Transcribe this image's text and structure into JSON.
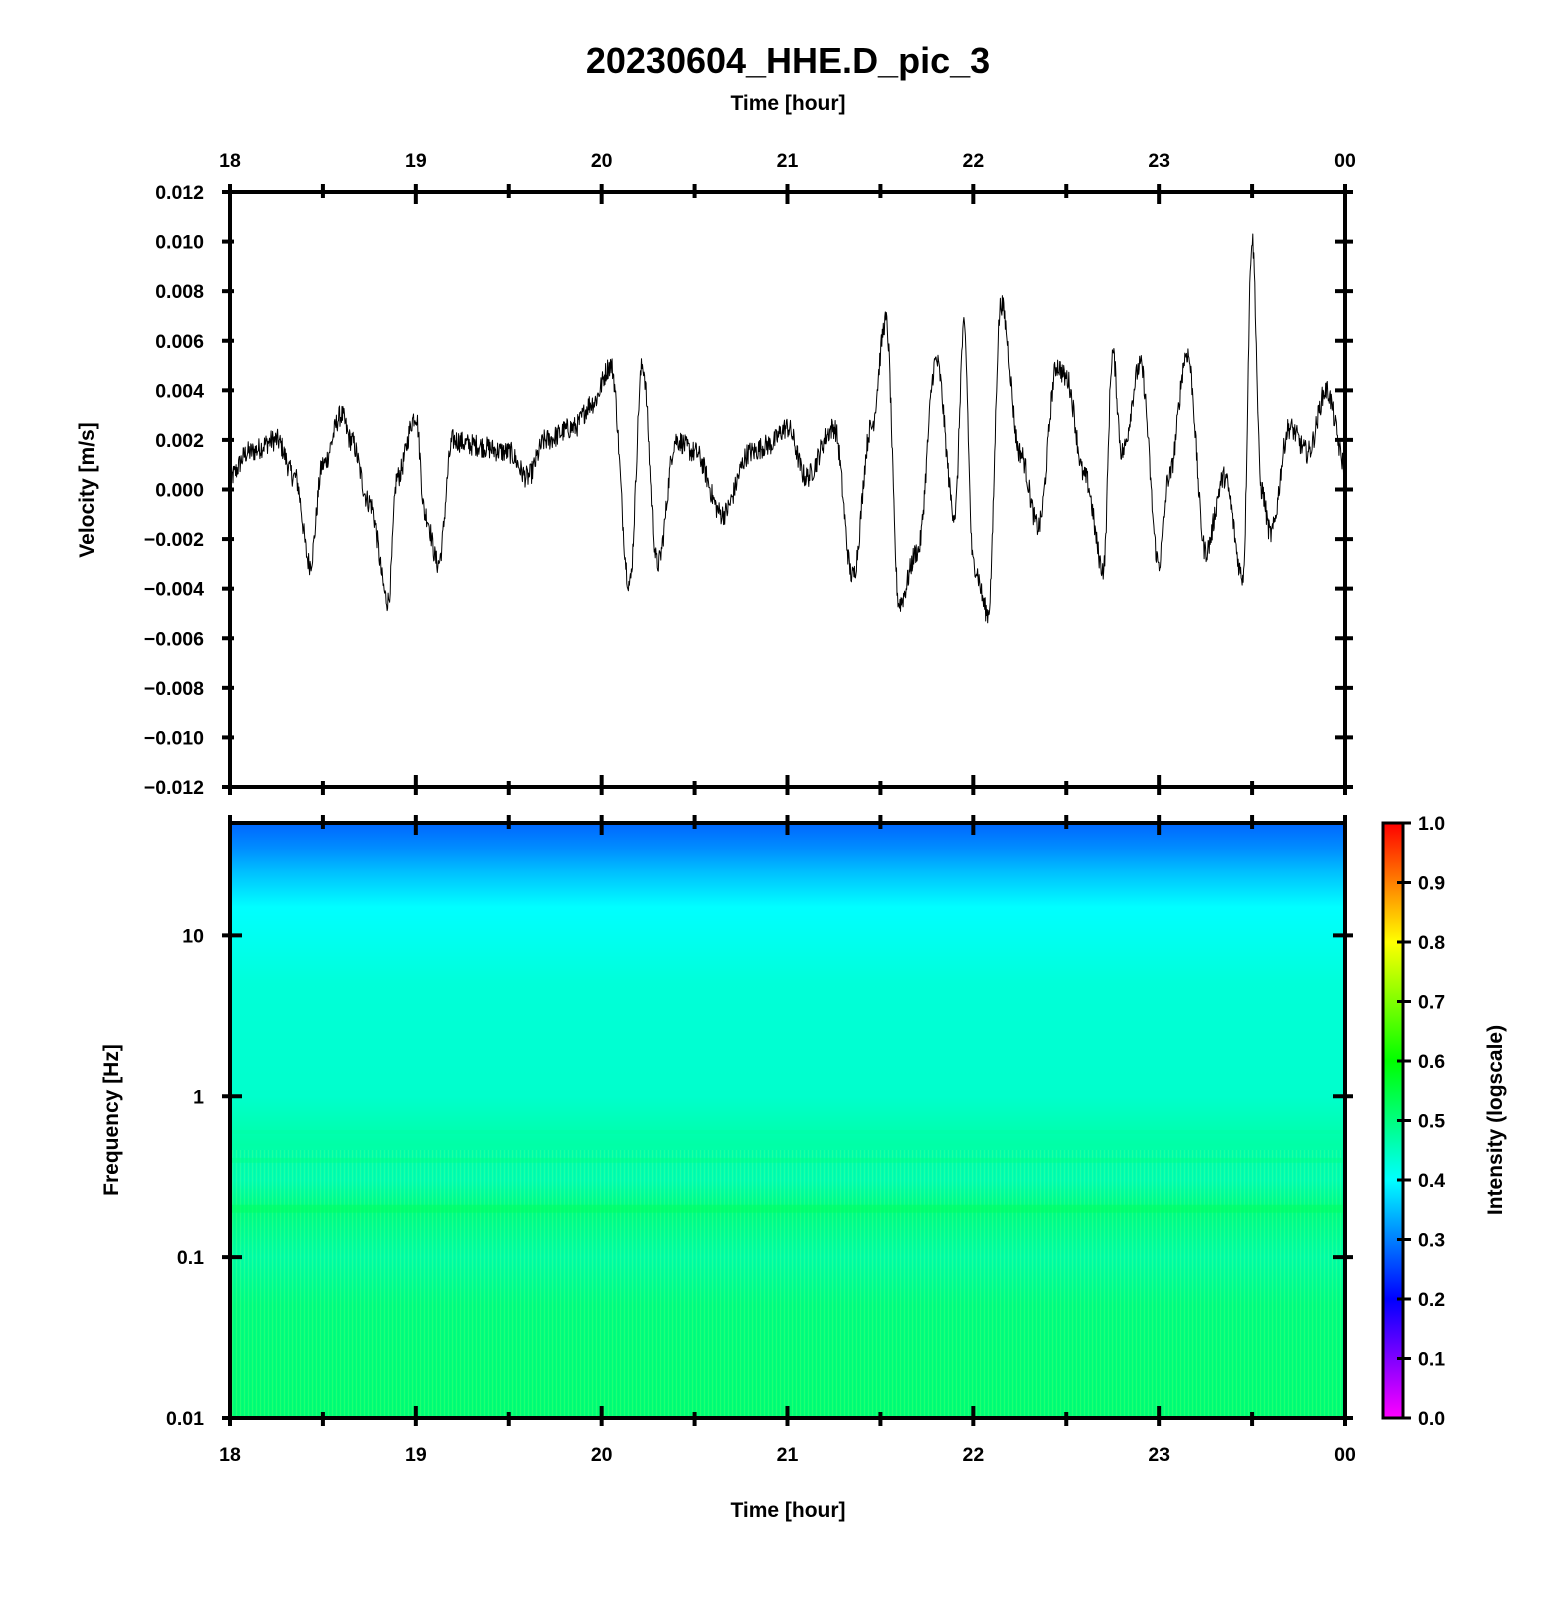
{
  "chart_data": [
    {
      "type": "line",
      "title": "20230604_HHE.D_pic_3",
      "xlabel": "Time [hour]",
      "ylabel": "Velocity [m/s]",
      "xlim": [
        18,
        24
      ],
      "ylim": [
        -0.012,
        0.012
      ],
      "x_ticks": [
        "18",
        "19",
        "20",
        "21",
        "22",
        "23",
        "00"
      ],
      "y_ticks": [
        "0.012",
        "0.010",
        "0.008",
        "0.006",
        "0.004",
        "0.002",
        "0.000",
        "−0.002",
        "−0.004",
        "−0.006",
        "−0.008",
        "−0.010",
        "−0.012"
      ],
      "grid": false,
      "line_color": "#000000",
      "series": [
        {
          "x": [
            18.0,
            18.1,
            18.25,
            18.35,
            18.43,
            18.5,
            18.6,
            18.65,
            18.75,
            18.85,
            18.9,
            19.0,
            19.05,
            19.12,
            19.2,
            19.3,
            19.5,
            19.6,
            19.7,
            19.85,
            19.95,
            20.05,
            20.15,
            20.22,
            20.3,
            20.4,
            20.5,
            20.65,
            20.8,
            20.9,
            21.0,
            21.1,
            21.25,
            21.35,
            21.45,
            21.53,
            21.6,
            21.7,
            21.8,
            21.9,
            21.95,
            22.0,
            22.08,
            22.15,
            22.25,
            22.35,
            22.45,
            22.5,
            22.6,
            22.7,
            22.75,
            22.8,
            22.9,
            23.0,
            23.05,
            23.15,
            23.25,
            23.35,
            23.45,
            23.5,
            23.55,
            23.6,
            23.7,
            23.8,
            23.9,
            24.0
          ],
          "values": [
            0.0005,
            0.0015,
            0.002,
            0.0005,
            -0.003,
            0.001,
            0.003,
            0.002,
            -0.0005,
            -0.0045,
            0.0005,
            0.003,
            -0.001,
            -0.003,
            0.002,
            0.0018,
            0.0015,
            0.0005,
            0.002,
            0.0025,
            0.0035,
            0.005,
            -0.0038,
            0.005,
            -0.003,
            0.002,
            0.0015,
            -0.001,
            0.0015,
            0.0018,
            0.0025,
            0.0005,
            0.0025,
            -0.0035,
            0.0025,
            0.0068,
            -0.0046,
            -0.0025,
            0.0052,
            -0.001,
            0.0065,
            -0.003,
            -0.005,
            0.0075,
            0.0015,
            -0.0015,
            0.005,
            0.0045,
            0.0005,
            -0.0032,
            0.0055,
            0.0015,
            0.005,
            -0.003,
            0.0005,
            0.0055,
            -0.0025,
            0.0005,
            -0.0035,
            0.0101,
            0.0,
            -0.0018,
            0.0025,
            0.0015,
            0.004,
            0.001
          ]
        }
      ]
    },
    {
      "type": "heatmap",
      "xlabel": "Time [hour]",
      "ylabel": "Frequency [Hz]",
      "xlim": [
        18,
        24
      ],
      "ylim": [
        0.01,
        50
      ],
      "y_scale": "log",
      "x_ticks": [
        "18",
        "19",
        "20",
        "21",
        "22",
        "23",
        "00"
      ],
      "y_ticks": [
        "10",
        "1",
        "0.1",
        "0.01"
      ],
      "y_tick_values": [
        10,
        1,
        0.1,
        0.01
      ],
      "frequency_hz": [
        50,
        35,
        25,
        15,
        10,
        5,
        1,
        0.5,
        0.3,
        0.2,
        0.1,
        0.05,
        0.01
      ],
      "intensity": [
        0.28,
        0.31,
        0.35,
        0.4,
        0.41,
        0.43,
        0.44,
        0.47,
        0.46,
        0.5,
        0.47,
        0.5,
        0.51
      ],
      "colorbar": {
        "label": "Intensity (logscale)",
        "range": [
          0,
          1
        ],
        "ticks": [
          "1.0",
          "0.9",
          "0.8",
          "0.7",
          "0.6",
          "0.5",
          "0.4",
          "0.3",
          "0.2",
          "0.1",
          "0.0"
        ],
        "colors": [
          "#ff00ff",
          "#0000ff",
          "#00ffff",
          "#00ff00",
          "#ffff00",
          "#ff0000"
        ]
      }
    }
  ]
}
